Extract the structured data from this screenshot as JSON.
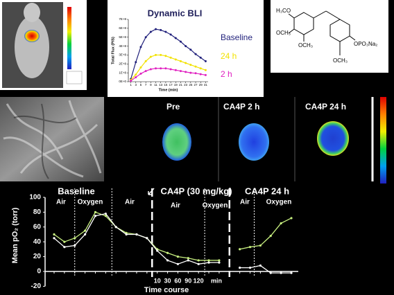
{
  "chart_data": [
    {
      "type": "line",
      "title": "Dynamic BLI",
      "y_label": "Total Flux (P/S)",
      "x_label": "Time (min)",
      "x": [
        1,
        3,
        5,
        7,
        9,
        11,
        13,
        15,
        17,
        19,
        21,
        23,
        25,
        27,
        29,
        31
      ],
      "series": [
        {
          "name": "Baseline",
          "color": "#1f1f7a",
          "values": [
            30000000,
            220000000,
            390000000,
            500000000,
            560000000,
            590000000,
            580000000,
            560000000,
            530000000,
            490000000,
            450000000,
            400000000,
            360000000,
            310000000,
            270000000,
            230000000
          ]
        },
        {
          "name": "24 h",
          "color": "#f2e200",
          "values": [
            20000000,
            80000000,
            160000000,
            230000000,
            280000000,
            300000000,
            300000000,
            290000000,
            270000000,
            250000000,
            230000000,
            210000000,
            190000000,
            170000000,
            150000000,
            130000000
          ]
        },
        {
          "name": "2 h",
          "color": "#e020c0",
          "values": [
            10000000,
            50000000,
            90000000,
            120000000,
            140000000,
            150000000,
            150000000,
            150000000,
            140000000,
            130000000,
            120000000,
            110000000,
            100000000,
            95000000,
            85000000,
            75000000
          ]
        }
      ],
      "xlim": [
        0,
        32
      ],
      "xticks": [
        1,
        3,
        5,
        7,
        9,
        11,
        13,
        15,
        17,
        19,
        21,
        23,
        25,
        27,
        29,
        31
      ],
      "ylim": [
        0,
        700000000
      ],
      "yticks": [
        {
          "value": 0,
          "label": "0E+0"
        },
        {
          "value": 100000000,
          "label": "1E+8"
        },
        {
          "value": 200000000,
          "label": "2E+8"
        },
        {
          "value": 300000000,
          "label": "3E+8"
        },
        {
          "value": 400000000,
          "label": "4E+8"
        },
        {
          "value": 500000000,
          "label": "5E+8"
        },
        {
          "value": 600000000,
          "label": "6E+8"
        },
        {
          "value": 700000000,
          "label": "7E+8"
        }
      ]
    },
    {
      "type": "line",
      "y_label": "Mean pO₂ (torr)",
      "x_label": "Time course",
      "categories": [
        null,
        null,
        null,
        null,
        null,
        null,
        null,
        null,
        null,
        null,
        "10",
        "30",
        "60",
        "90",
        "120",
        null,
        null,
        null,
        null,
        null,
        null,
        null,
        null,
        null
      ],
      "series": [
        {
          "color": "#c8f080",
          "values": [
            50,
            40,
            45,
            55,
            80,
            75,
            60,
            52,
            50,
            45,
            30,
            25,
            20,
            18,
            15,
            15,
            15,
            null,
            30,
            33,
            35,
            48,
            65,
            72
          ]
        },
        {
          "color": "#ffffff",
          "values": [
            45,
            33,
            35,
            50,
            75,
            78,
            60,
            50,
            50,
            45,
            28,
            15,
            10,
            15,
            10,
            12,
            12,
            null,
            5,
            5,
            8,
            -2,
            -2,
            -2
          ]
        }
      ],
      "ylim": [
        -20,
        100
      ],
      "yticks": [
        -20,
        0,
        20,
        40,
        60,
        80,
        100
      ],
      "annotations": [
        "Baseline",
        "CA4P (30 mg/kg)",
        "CA4P 24 h",
        "Air",
        "Oxygen",
        "Air",
        "Air",
        "Oxygen",
        "Air",
        "Oxygen",
        "min"
      ]
    }
  ],
  "panels": {
    "mri_labels": [
      "Pre",
      "CA4P 2 h",
      "CA4P 24 h"
    ]
  },
  "structure": {
    "labels": [
      "H₃CO",
      "OCH₃",
      "OCH₃",
      "OPO₃Na₂",
      "OCH₃"
    ]
  }
}
